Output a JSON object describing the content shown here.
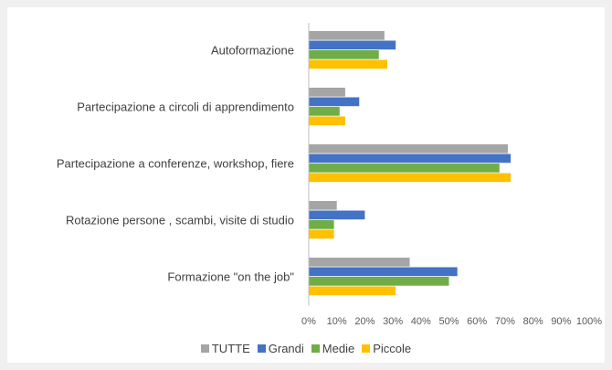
{
  "chart_data": {
    "type": "barh",
    "categories": [
      "Autoformazione",
      "Partecipazione a circoli di apprendimento",
      "Partecipazione a conferenze, workshop, fiere",
      "Rotazione persone , scambi, visite di studio",
      "Formazione \"on the job\""
    ],
    "series": [
      {
        "name": "TUTTE",
        "color": "#a5a5a5",
        "values": [
          27,
          13,
          71,
          10,
          36
        ]
      },
      {
        "name": "Grandi",
        "color": "#4472c4",
        "values": [
          31,
          18,
          72,
          20,
          53
        ]
      },
      {
        "name": "Medie",
        "color": "#70ad47",
        "values": [
          25,
          11,
          68,
          9,
          50
        ]
      },
      {
        "name": "Piccole",
        "color": "#ffc000",
        "values": [
          28,
          13,
          72,
          9,
          31
        ]
      }
    ],
    "xlim": [
      0,
      100
    ],
    "xticks": [
      {
        "value": 0,
        "label": "0%"
      },
      {
        "value": 10,
        "label": "10%"
      },
      {
        "value": 20,
        "label": "20%"
      },
      {
        "value": 30,
        "label": "30%"
      },
      {
        "value": 40,
        "label": "40%"
      },
      {
        "value": 50,
        "label": "50%"
      },
      {
        "value": 60,
        "label": "60%"
      },
      {
        "value": 70,
        "label": "70%"
      },
      {
        "value": 80,
        "label": "80%"
      },
      {
        "value": 90,
        "label": "90%"
      },
      {
        "value": 100,
        "label": "100%"
      }
    ],
    "grid": false
  }
}
